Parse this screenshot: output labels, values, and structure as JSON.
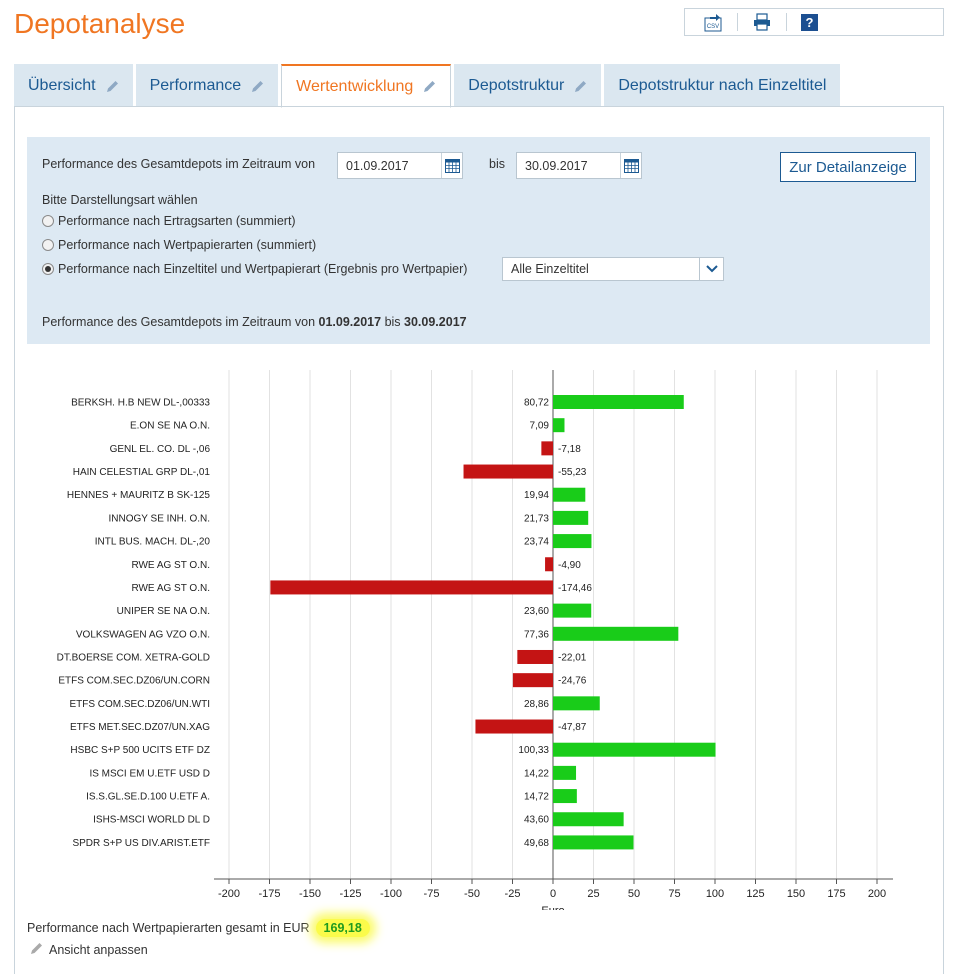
{
  "page": {
    "title": "Depotanalyse"
  },
  "toolbar": {
    "csv_icon": "csv-export-icon",
    "print_icon": "printer-icon",
    "help_label": "?"
  },
  "tabs": [
    {
      "label": "Übersicht",
      "active": false
    },
    {
      "label": "Performance",
      "active": false
    },
    {
      "label": "Wertentwicklung",
      "active": true
    },
    {
      "label": "Depotstruktur",
      "active": false
    },
    {
      "label": "Depotstruktur nach Einzeltitel",
      "active": false
    }
  ],
  "filter": {
    "period_label": "Performance des Gesamtdepots im Zeitraum von",
    "from_value": "01.09.2017",
    "to_label": "bis",
    "to_value": "30.09.2017",
    "detail_button": "Zur Detailanzeige",
    "mode_label": "Bitte Darstellungsart wählen",
    "options": [
      {
        "label": "Performance nach Ertragsarten (summiert)",
        "selected": false
      },
      {
        "label": "Performance nach Wertpapierarten (summiert)",
        "selected": false
      },
      {
        "label": "Performance nach Einzeltitel und Wertpapierart (Ergebnis pro Wertpapier)",
        "selected": true
      }
    ],
    "select_value": "Alle Einzeltitel",
    "summary_prefix": "Performance des Gesamtdepots im Zeitraum von",
    "summary_from": "01.09.2017",
    "summary_mid": "bis",
    "summary_to": "30.09.2017"
  },
  "chart_data": {
    "type": "bar",
    "orientation": "horizontal",
    "xlabel": "Euro",
    "xlim": [
      -200,
      200
    ],
    "xticks": [
      -200,
      -175,
      -150,
      -125,
      -100,
      -75,
      -50,
      -25,
      0,
      25,
      50,
      75,
      100,
      125,
      150,
      175,
      200
    ],
    "grid": true,
    "positive_color": "#19cc19",
    "negative_color": "#c41414",
    "categories": [
      "BERKSH. H.B NEW DL-,00333",
      "E.ON SE NA O.N.",
      "GENL EL. CO.     DL -,06",
      "HAIN CELESTIAL GRP DL-,01",
      "HENNES + MAURITZ B SK-125",
      "INNOGY SE  INH. O.N.",
      "INTL BUS. MACH.    DL-,20",
      "RWE AG ST O.N.",
      "RWE AG ST O.N.",
      "UNIPER SE  NA O.N.",
      "VOLKSWAGEN AG VZO O.N.",
      "DT.BOERSE COM. XETRA-GOLD",
      "ETFS COM.SEC.DZ06/UN.CORN",
      "ETFS COM.SEC.DZ06/UN.WTI",
      "ETFS MET.SEC.DZ07/UN.XAG",
      "HSBC S+P 500 UCITS ETF DZ",
      "IS MSCI EM U.ETF USD D",
      "IS.S.GL.SE.D.100 U.ETF A.",
      "ISHS-MSCI WORLD DL D",
      "SPDR S+P US DIV.ARIST.ETF"
    ],
    "values": [
      80.72,
      7.09,
      -7.18,
      -55.23,
      19.94,
      21.73,
      23.74,
      -4.9,
      -174.46,
      23.6,
      77.36,
      -22.01,
      -24.76,
      28.86,
      -47.87,
      100.33,
      14.22,
      14.72,
      43.6,
      49.68
    ],
    "value_labels": [
      "80,72",
      "7,09",
      "-7,18",
      "-55,23",
      "19,94",
      "21,73",
      "23,74",
      "-4,90",
      "-174,46",
      "23,60",
      "77,36",
      "-22,01",
      "-24,76",
      "28,86",
      "-47,87",
      "100,33",
      "14,22",
      "14,72",
      "43,60",
      "49,68"
    ]
  },
  "total": {
    "label": "Performance nach Wertpapierarten gesamt in EUR",
    "value": "169,18"
  },
  "adjust": {
    "label": "Ansicht anpassen"
  }
}
